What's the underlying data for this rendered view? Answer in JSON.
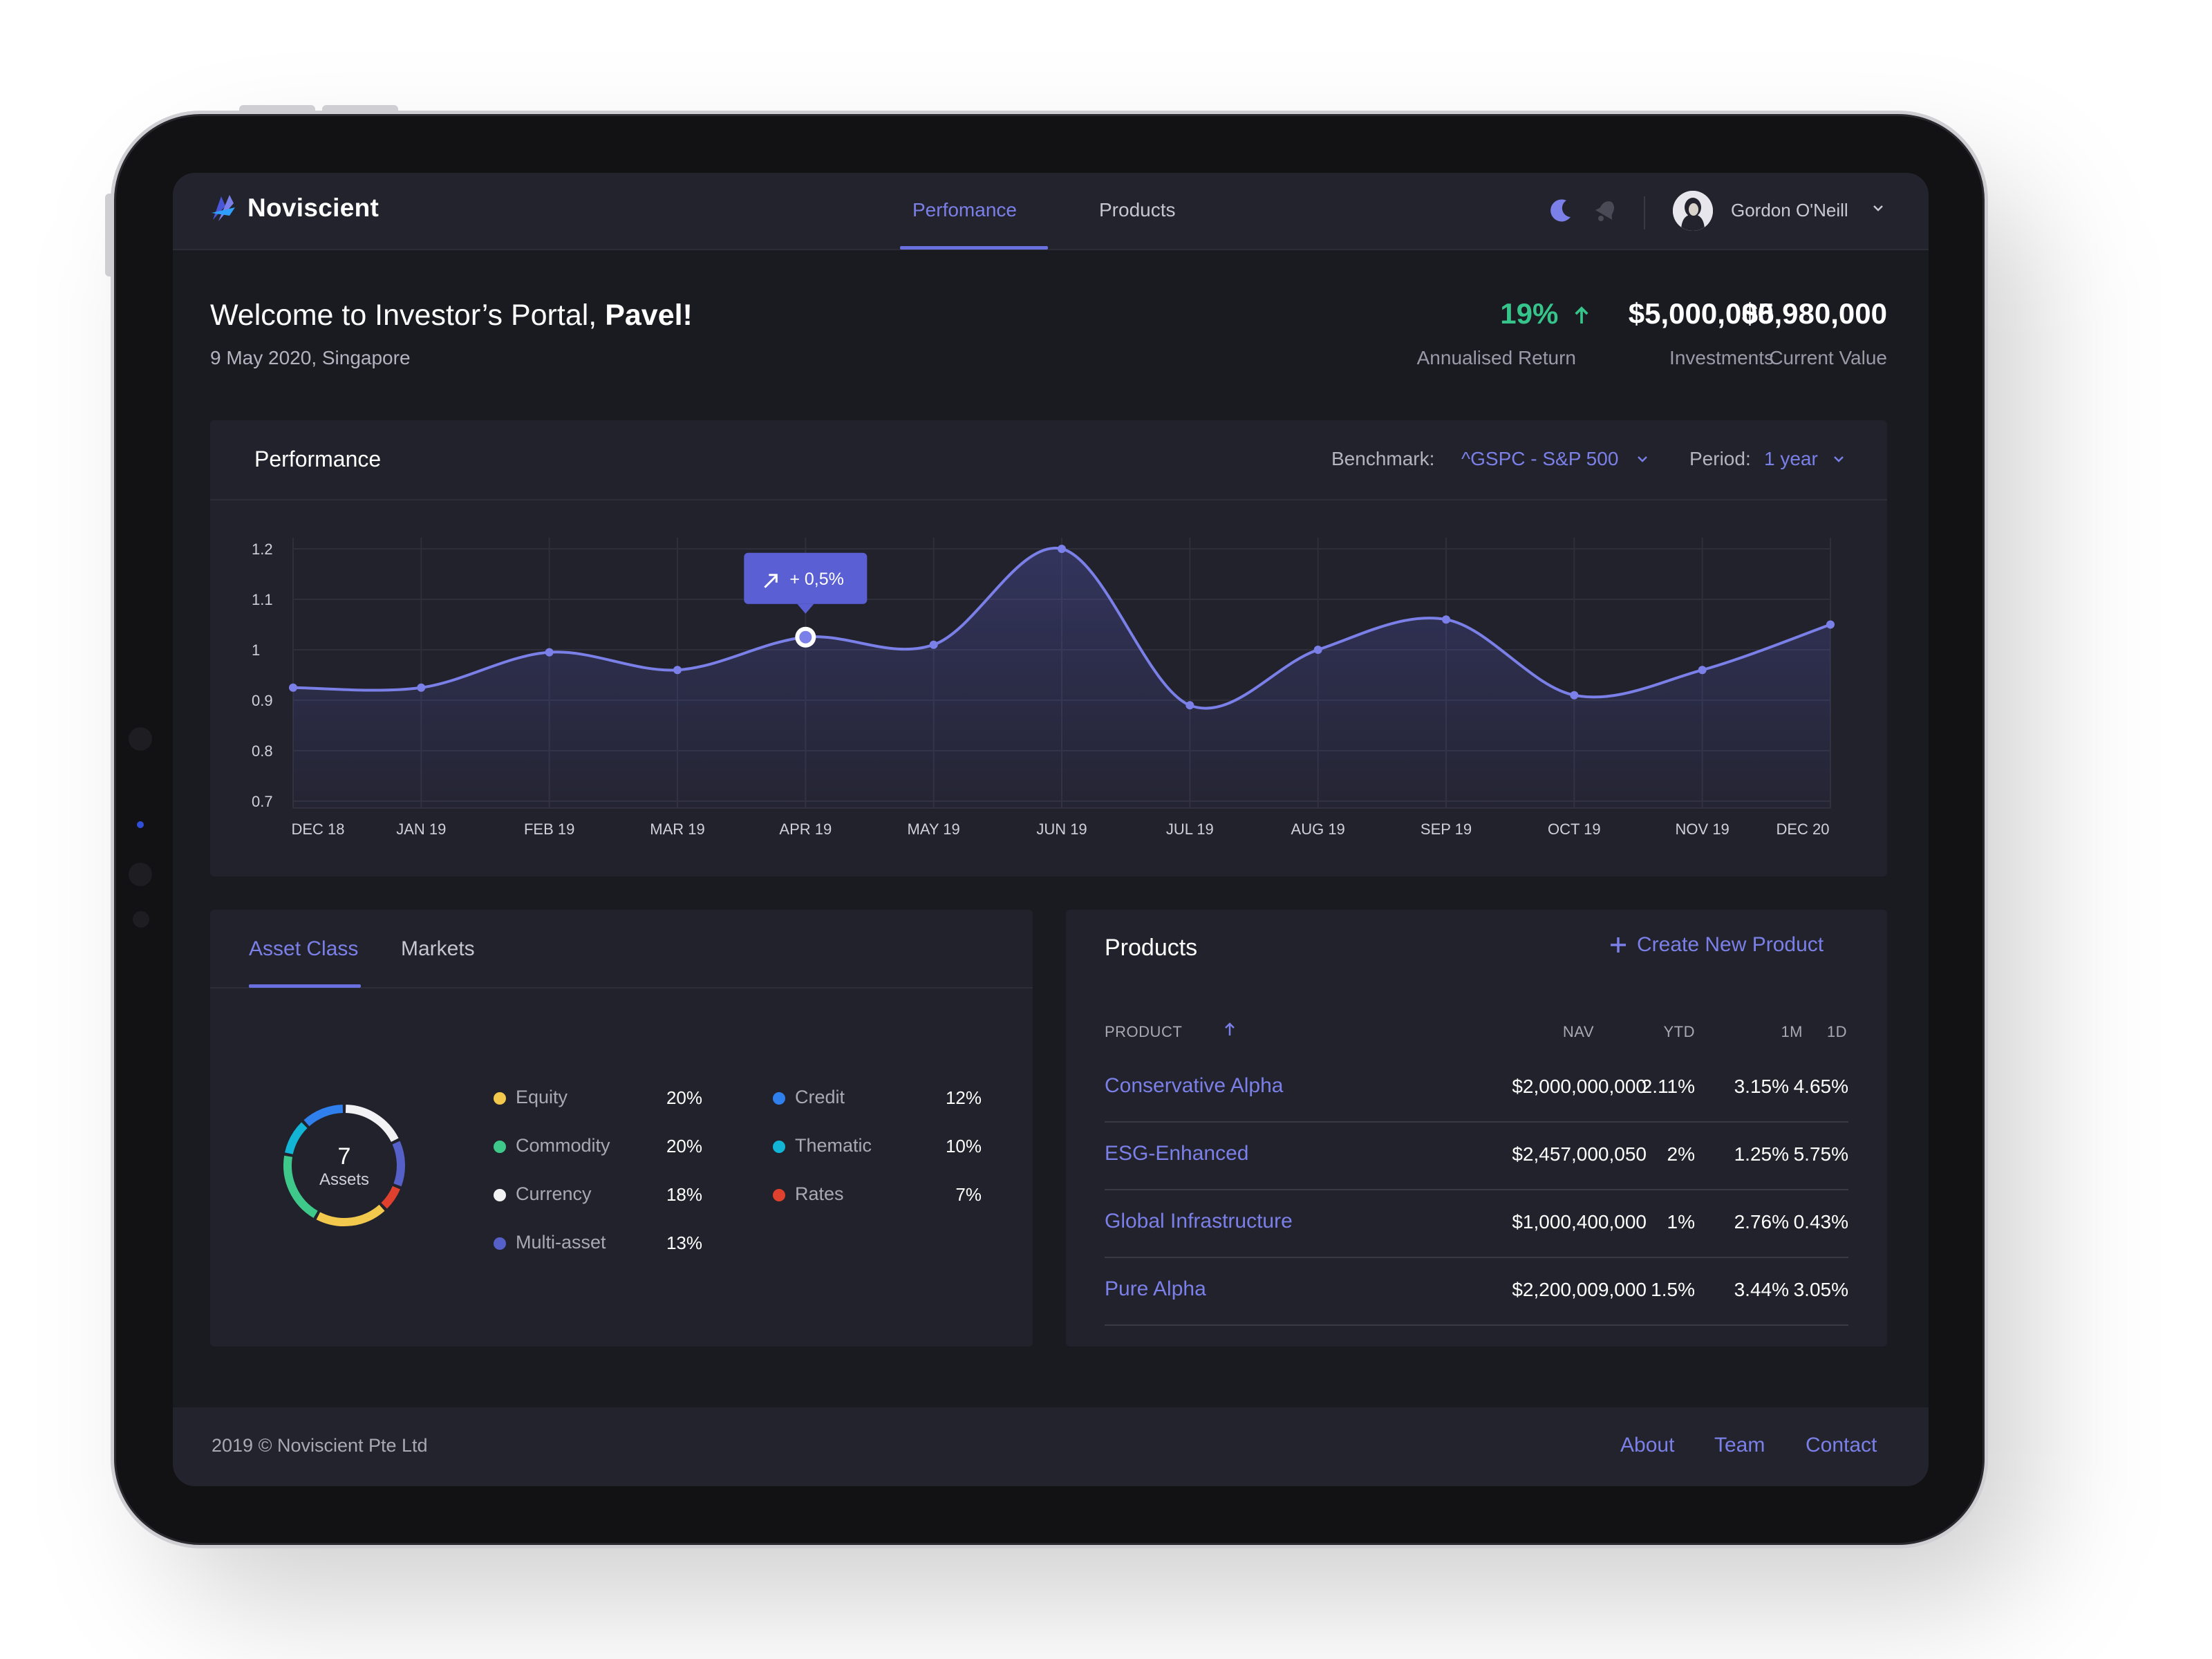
{
  "brand": {
    "name": "Noviscient"
  },
  "nav": {
    "tabs": [
      "Perfomance",
      "Products"
    ],
    "active": "Perfomance"
  },
  "user": {
    "name": "Gordon O'Neill"
  },
  "welcome": {
    "prefix": "Welcome to Investor’s Portal, ",
    "name": "Pavel!",
    "date": "9 May 2020, Singapore"
  },
  "stats": [
    {
      "value": "19%",
      "label": "Annualised Return",
      "color": "#36c48b",
      "trend": "up"
    },
    {
      "value": "$5,000,000",
      "label": "Investments"
    },
    {
      "value": "$5,980,000",
      "label": "Current Value"
    }
  ],
  "performance": {
    "title": "Performance",
    "benchmark_label": "Benchmark:",
    "benchmark_value": "^GSPC - S&P 500",
    "period_label": "Period:",
    "period_value": "1 year",
    "tooltip": "+ 0,5%"
  },
  "chart_data": {
    "type": "line",
    "categories": [
      "DEC 18",
      "JAN 19",
      "FEB 19",
      "MAR 19",
      "APR 19",
      "MAY 19",
      "JUN 19",
      "JUL 19",
      "AUG 19",
      "SEP 19",
      "OCT 19",
      "NOV 19",
      "DEC 20"
    ],
    "values": [
      0.925,
      0.925,
      0.995,
      0.96,
      1.025,
      1.01,
      1.2,
      0.89,
      1.0,
      1.06,
      0.91,
      0.96,
      1.05
    ],
    "highlight_index": 4,
    "yticks": [
      "0.7",
      "0.8",
      "0.9",
      "1",
      "1.1",
      "1.2"
    ],
    "ylim": [
      0.7,
      1.2
    ],
    "grid": true,
    "color": "#7b80e8"
  },
  "assets": {
    "tabs": [
      "Asset Class",
      "Markets"
    ],
    "active_tab": "Asset Class",
    "total": "7",
    "total_label": "Assets",
    "items": [
      {
        "name": "Equity",
        "pct": "20%",
        "value": 20,
        "color": "#f2c94c"
      },
      {
        "name": "Commodity",
        "pct": "20%",
        "value": 20,
        "color": "#3ec98a"
      },
      {
        "name": "Currency",
        "pct": "18%",
        "value": 18,
        "color": "#f2f2f5"
      },
      {
        "name": "Multi-asset",
        "pct": "13%",
        "value": 13,
        "color": "#5561c9"
      },
      {
        "name": "Credit",
        "pct": "12%",
        "value": 12,
        "color": "#2f80ed"
      },
      {
        "name": "Thematic",
        "pct": "10%",
        "value": 10,
        "color": "#12b5d6"
      },
      {
        "name": "Rates",
        "pct": "7%",
        "value": 7,
        "color": "#e0412f"
      }
    ]
  },
  "products": {
    "title": "Products",
    "create_label": "Create New Product",
    "columns": [
      "PRODUCT",
      "NAV",
      "YTD",
      "1M",
      "1D"
    ],
    "rows": [
      {
        "name": "Conservative Alpha",
        "nav": "$2,000,000,000",
        "ytd": "2.11%",
        "m1": "3.15%",
        "d1": "4.65%"
      },
      {
        "name": "ESG-Enhanced",
        "nav": "$2,457,000,050",
        "ytd": "2%",
        "m1": "1.25%",
        "d1": "5.75%"
      },
      {
        "name": "Global Infrastructure",
        "nav": "$1,000,400,000",
        "ytd": "1%",
        "m1": "2.76%",
        "d1": "0.43%"
      },
      {
        "name": "Pure Alpha",
        "nav": "$2,200,009,000",
        "ytd": "1.5%",
        "m1": "3.44%",
        "d1": "3.05%"
      }
    ]
  },
  "footer": {
    "copyright": "2019 © Noviscient Pte Ltd",
    "links": [
      "About",
      "Team",
      "Contact"
    ]
  }
}
